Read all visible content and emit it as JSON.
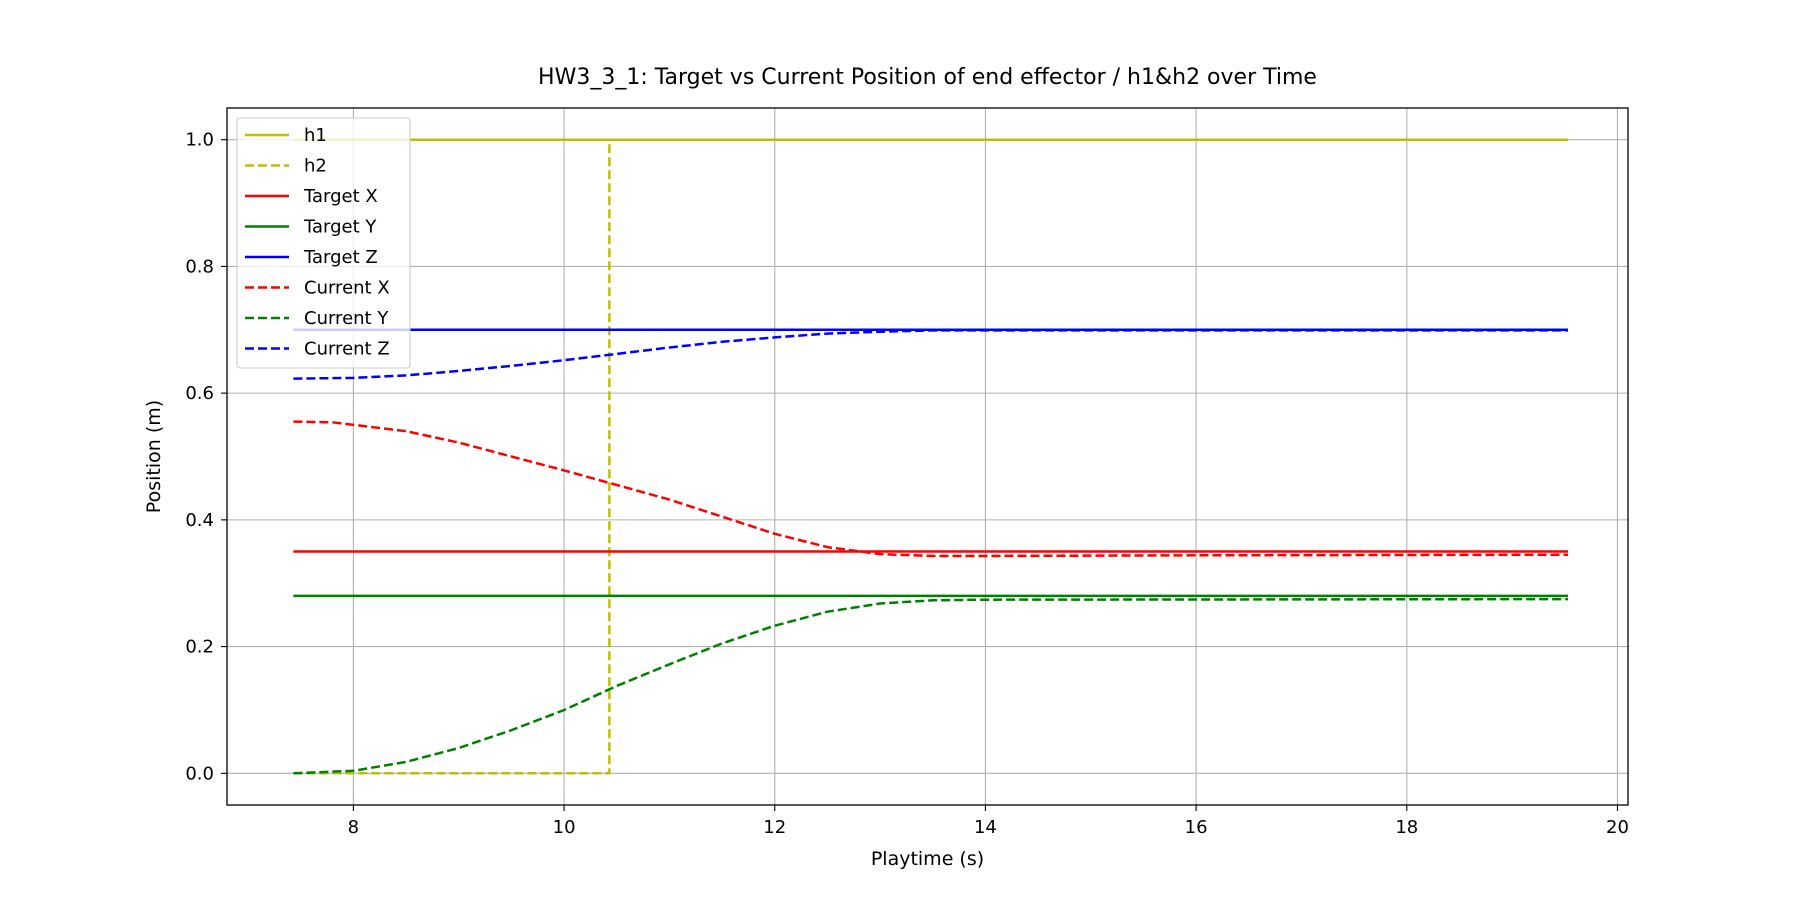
{
  "chart_data": {
    "type": "line",
    "title": "HW3_3_1: Target vs Current Position of end effector / h1&h2 over Time",
    "xlabel": "Playtime (s)",
    "ylabel": "Position (m)",
    "xlim": [
      6.8,
      20.1
    ],
    "ylim": [
      -0.05,
      1.05
    ],
    "xticks": [
      8,
      10,
      12,
      14,
      16,
      18,
      20
    ],
    "yticks": [
      0.0,
      0.2,
      0.4,
      0.6,
      0.8,
      1.0
    ],
    "xtick_labels": [
      "8",
      "10",
      "12",
      "14",
      "16",
      "18",
      "20"
    ],
    "ytick_labels": [
      "0.0",
      "0.2",
      "0.4",
      "0.6",
      "0.8",
      "1.0"
    ],
    "grid": true,
    "legend_position": "top-left",
    "series": [
      {
        "name": "h1",
        "color": "#bfbf00",
        "style": "solid",
        "points": [
          [
            7.43,
            1.0
          ],
          [
            19.53,
            1.0
          ]
        ]
      },
      {
        "name": "h2",
        "color": "#bfbf00",
        "style": "dashed",
        "points": [
          [
            7.43,
            0.0
          ],
          [
            10.43,
            0.0
          ],
          [
            10.43,
            1.0
          ]
        ]
      },
      {
        "name": "Target X",
        "color": "#ff0000",
        "style": "solid",
        "points": [
          [
            7.43,
            0.35
          ],
          [
            19.53,
            0.35
          ]
        ]
      },
      {
        "name": "Target Y",
        "color": "#008000",
        "style": "solid",
        "points": [
          [
            7.43,
            0.28
          ],
          [
            19.53,
            0.28
          ]
        ]
      },
      {
        "name": "Target Z",
        "color": "#0000ff",
        "style": "solid",
        "points": [
          [
            7.43,
            0.7
          ],
          [
            19.53,
            0.7
          ]
        ]
      },
      {
        "name": "Current X",
        "color": "#ff0000",
        "style": "dashed",
        "points": [
          [
            7.43,
            0.555
          ],
          [
            7.8,
            0.554
          ],
          [
            8.5,
            0.54
          ],
          [
            9.0,
            0.522
          ],
          [
            9.5,
            0.5
          ],
          [
            10.0,
            0.478
          ],
          [
            10.5,
            0.455
          ],
          [
            11.0,
            0.432
          ],
          [
            11.5,
            0.405
          ],
          [
            12.0,
            0.378
          ],
          [
            12.5,
            0.357
          ],
          [
            13.0,
            0.346
          ],
          [
            13.5,
            0.343
          ],
          [
            14.0,
            0.343
          ],
          [
            16.0,
            0.344
          ],
          [
            19.53,
            0.345
          ]
        ]
      },
      {
        "name": "Current Y",
        "color": "#008000",
        "style": "dashed",
        "points": [
          [
            7.43,
            0.0
          ],
          [
            8.0,
            0.004
          ],
          [
            8.5,
            0.018
          ],
          [
            9.0,
            0.04
          ],
          [
            9.5,
            0.068
          ],
          [
            10.0,
            0.1
          ],
          [
            10.5,
            0.138
          ],
          [
            11.0,
            0.172
          ],
          [
            11.5,
            0.205
          ],
          [
            12.0,
            0.233
          ],
          [
            12.5,
            0.255
          ],
          [
            13.0,
            0.268
          ],
          [
            13.5,
            0.273
          ],
          [
            14.0,
            0.274
          ],
          [
            19.53,
            0.275
          ]
        ]
      },
      {
        "name": "Current Z",
        "color": "#0000ff",
        "style": "dashed",
        "points": [
          [
            7.43,
            0.623
          ],
          [
            8.0,
            0.624
          ],
          [
            8.5,
            0.628
          ],
          [
            9.0,
            0.635
          ],
          [
            9.5,
            0.643
          ],
          [
            10.0,
            0.652
          ],
          [
            10.5,
            0.662
          ],
          [
            11.0,
            0.672
          ],
          [
            11.5,
            0.681
          ],
          [
            12.0,
            0.688
          ],
          [
            12.5,
            0.694
          ],
          [
            13.0,
            0.697
          ],
          [
            13.5,
            0.699
          ],
          [
            14.0,
            0.699
          ],
          [
            19.53,
            0.699
          ]
        ]
      }
    ]
  }
}
